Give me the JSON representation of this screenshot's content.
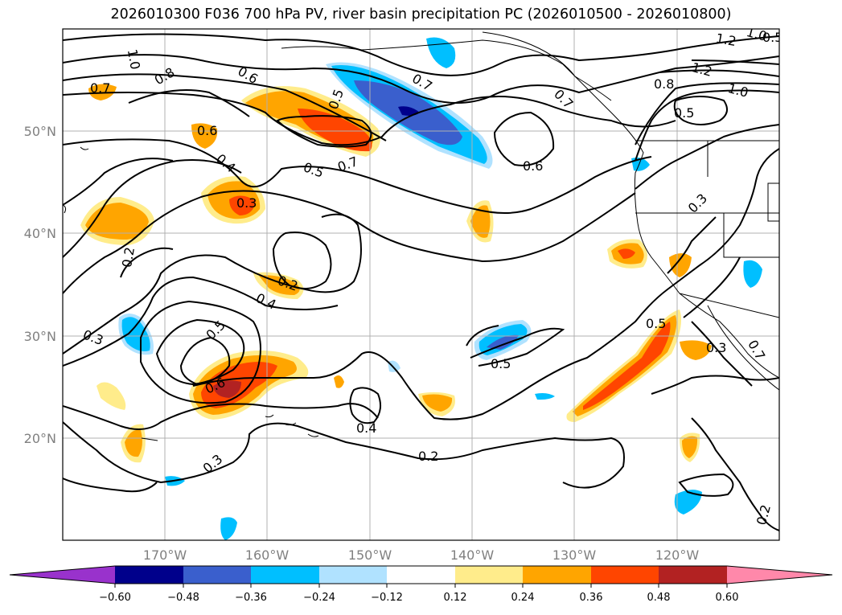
{
  "title": "2026010300 F036 700 hPa PV, river basin precipitation PC (2026010500 - 2026010800)",
  "axes": {
    "lat_labels": [
      "50°N",
      "40°N",
      "30°N",
      "20°N"
    ],
    "lon_labels": [
      "170°W",
      "160°W",
      "150°W",
      "140°W",
      "130°W",
      "120°W"
    ]
  },
  "contour_labels": [
    "1.0",
    "0.8",
    "0.7",
    "0.6",
    "0.5",
    "0.7",
    "0.6",
    "0.4",
    "0.5",
    "0.7",
    "0.7",
    "0.6",
    "0.3",
    "0.2",
    "0.2",
    "0.4",
    "0.5",
    "0.3",
    "0.6",
    "0.5",
    "0.4",
    "0.3",
    "0.2",
    "0.5",
    "0.5",
    "0.3",
    "0.8",
    "1.2",
    "1.2",
    "1.0",
    "1.0",
    "0.5",
    "0.3",
    "0.2",
    "0.7"
  ],
  "colorbar": {
    "ticks": [
      "−0.60",
      "−0.48",
      "−0.36",
      "−0.24",
      "−0.12",
      "0.12",
      "0.24",
      "0.36",
      "0.48",
      "0.60"
    ],
    "colors": [
      "#9932cc",
      "#00008b",
      "#3a5fcd",
      "#00bfff",
      "#b0e2ff",
      "#ffffff",
      "#ffec8b",
      "#ffa500",
      "#ff4500",
      "#b22222",
      "#ff88aa"
    ]
  }
}
